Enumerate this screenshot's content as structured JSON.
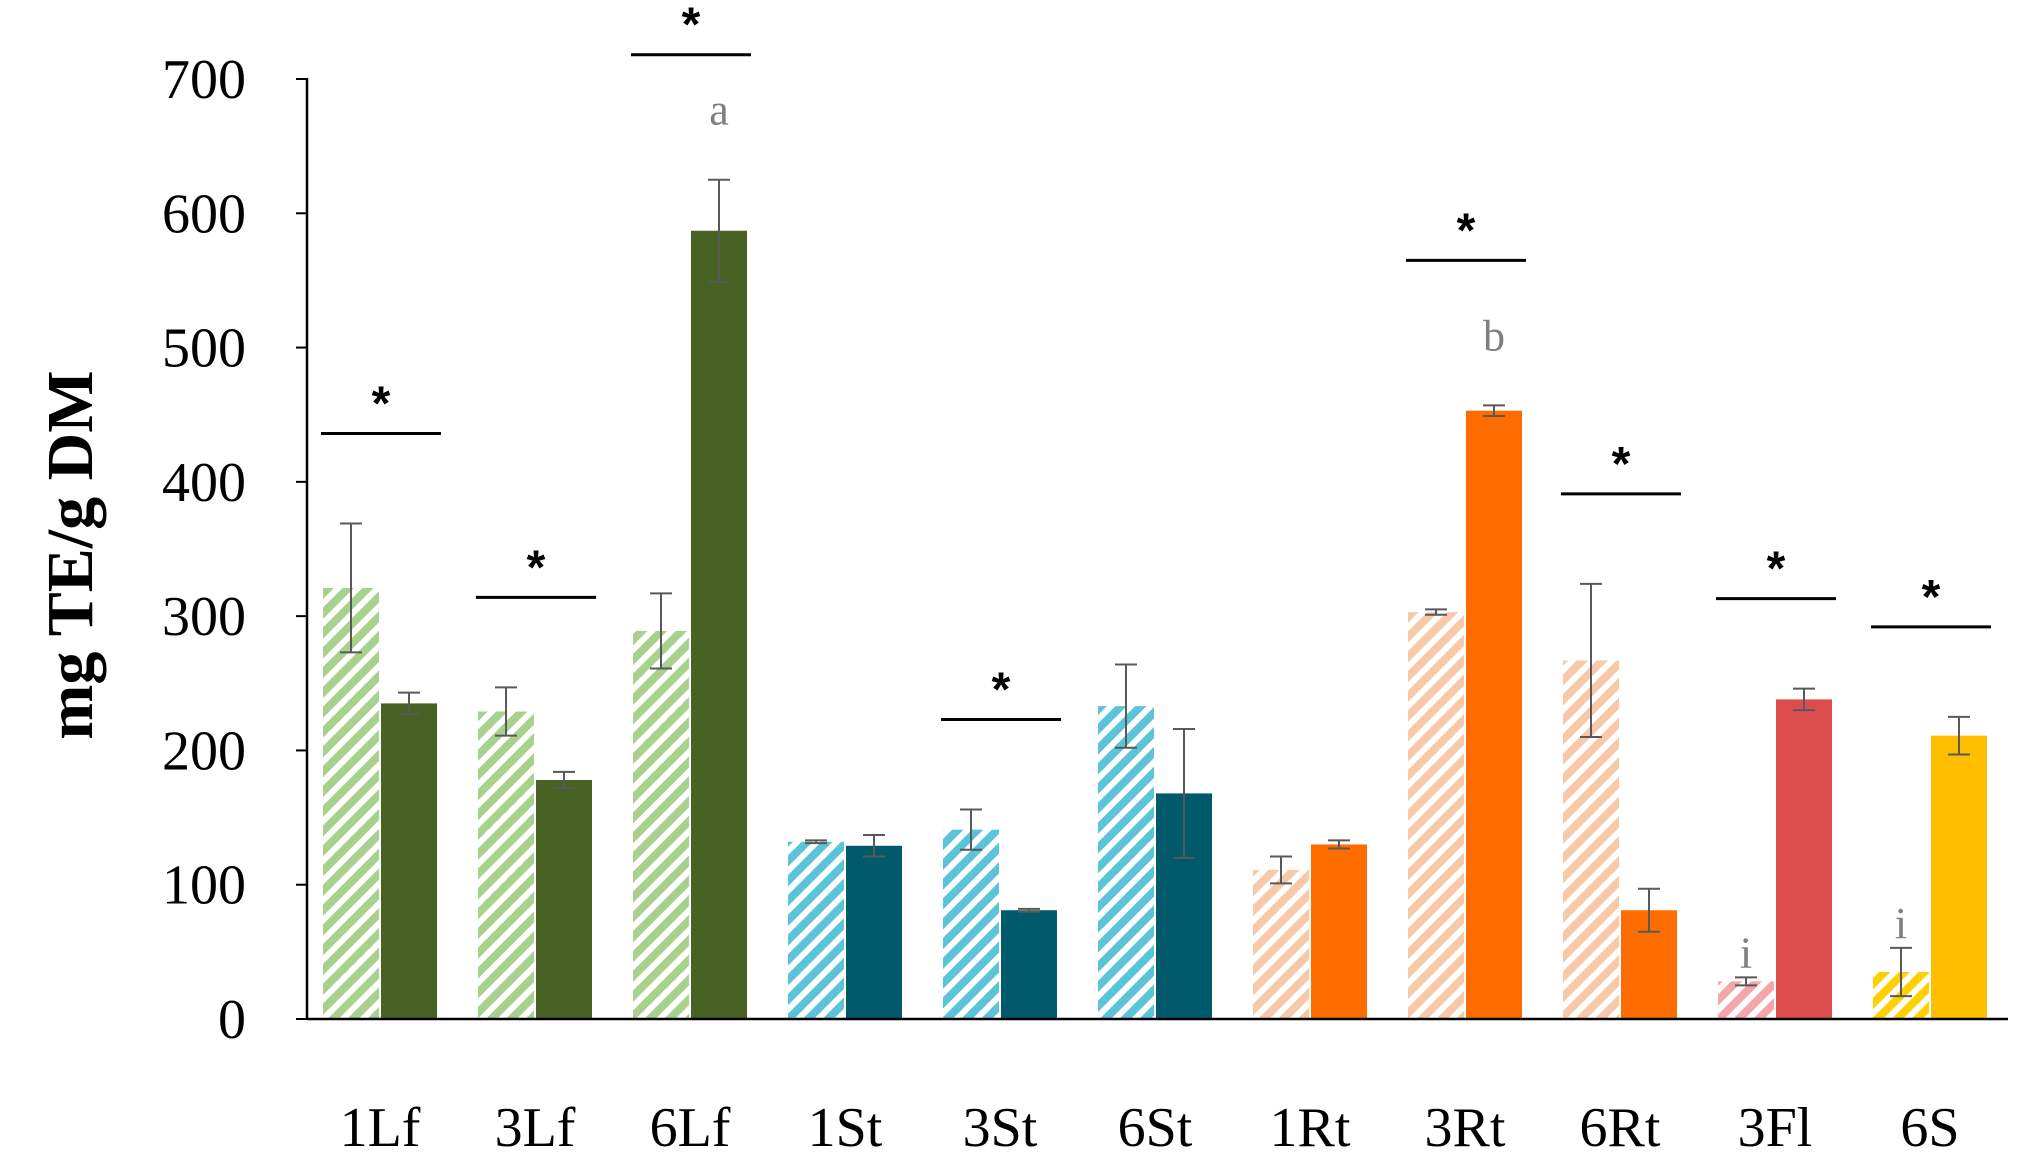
{
  "chart_data": {
    "type": "bar",
    "title": "",
    "xlabel": "",
    "ylabel": "mg TE/g DM",
    "ylim": [
      0,
      700
    ],
    "yticks": [
      "0",
      "100",
      "200",
      "300",
      "400",
      "500",
      "600",
      "700"
    ],
    "grid": false,
    "categories": [
      "1Lf",
      "3Lf",
      "6Lf",
      "1St",
      "3St",
      "6St",
      "1Rt",
      "3Rt",
      "6Rt",
      "3Fl",
      "6S"
    ],
    "series": [
      {
        "name": "hatched (left bar)",
        "values": [
          321,
          229,
          289,
          132,
          141,
          233,
          111,
          303,
          267,
          28,
          35
        ],
        "errors": [
          48,
          18,
          28,
          1,
          15,
          31,
          10,
          2,
          57,
          3,
          18
        ]
      },
      {
        "name": "solid (right bar)",
        "values": [
          235,
          178,
          587,
          129,
          81,
          168,
          130,
          453,
          81,
          238,
          211
        ],
        "errors": [
          8,
          6,
          38,
          8,
          1,
          48,
          3,
          4,
          16,
          8,
          14
        ]
      }
    ],
    "colors": {
      "hatched": [
        "#a9d18e",
        "#a9d18e",
        "#a9d18e",
        "#5bc4d8",
        "#5bc4d8",
        "#5bc4d8",
        "#f8c9a8",
        "#f8c9a8",
        "#f8c9a8",
        "#f4a6ab",
        "#ffd000"
      ],
      "solid": [
        "#476222",
        "#476222",
        "#476222",
        "#005a6b",
        "#005a6b",
        "#005a6b",
        "#ff6d00",
        "#ff6d00",
        "#ff6d00",
        "#de4d4d",
        "#ffbf00"
      ]
    },
    "significance": [
      {
        "category": "1Lf",
        "label": "*"
      },
      {
        "category": "3Lf",
        "label": "*"
      },
      {
        "category": "6Lf",
        "label": "*"
      },
      {
        "category": "3St",
        "label": "*"
      },
      {
        "category": "3Rt",
        "label": "*"
      },
      {
        "category": "6Rt",
        "label": "*"
      },
      {
        "category": "3Fl",
        "label": "*"
      },
      {
        "category": "6S",
        "label": "*"
      }
    ],
    "letters": [
      {
        "category": "6Lf",
        "series": 1,
        "label": "a"
      },
      {
        "category": "3Rt",
        "series": 1,
        "label": "b"
      },
      {
        "category": "3Fl",
        "series": 0,
        "label": "i"
      },
      {
        "category": "6S",
        "series": 0,
        "label": "i"
      }
    ]
  }
}
